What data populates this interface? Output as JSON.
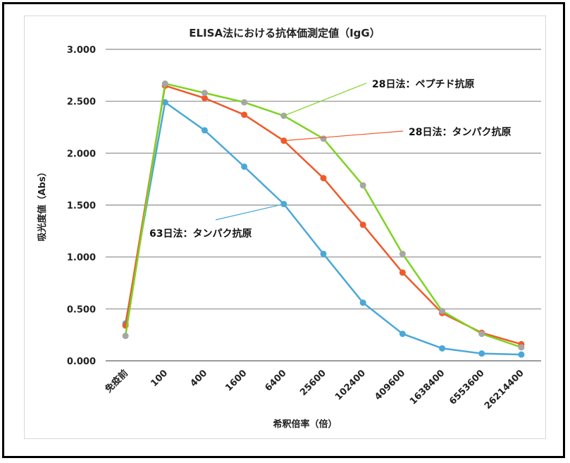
{
  "chart_data": {
    "type": "line",
    "title": "ELISA法における抗体価測定値（IgG）",
    "xlabel": "希釈倍率（倍）",
    "ylabel": "吸光度値（Abs）",
    "ylim": [
      0,
      3
    ],
    "yticks": [
      "0.000",
      "0.500",
      "1.000",
      "1.500",
      "2.000",
      "2.500",
      "3.000"
    ],
    "categories": [
      "免疫前",
      "100",
      "400",
      "1600",
      "6400",
      "25600",
      "102400",
      "409600",
      "1638400",
      "6553600",
      "26214400"
    ],
    "grid": "horizontal",
    "series": [
      {
        "name": "63日法：タンパク抗原",
        "color": "#4aa8d8",
        "values": [
          0.36,
          2.49,
          2.22,
          1.87,
          1.51,
          1.03,
          0.56,
          0.26,
          0.12,
          0.07,
          0.06
        ]
      },
      {
        "name": "28日法：タンパク抗原",
        "color": "#ee5a2a",
        "values": [
          0.34,
          2.65,
          2.53,
          2.37,
          2.12,
          1.76,
          1.31,
          0.85,
          0.46,
          0.27,
          0.16
        ]
      },
      {
        "name": "28日法：ペプチド抗原",
        "color": "#7ed321",
        "marker_color": "#a6a6a6",
        "values": [
          0.24,
          2.67,
          2.58,
          2.49,
          2.36,
          2.14,
          1.69,
          1.03,
          0.48,
          0.26,
          0.13
        ]
      }
    ],
    "annotations": [
      {
        "text": "28日法：ペプチド抗原",
        "series": 2,
        "point": 4
      },
      {
        "text": "28日法：タンパク抗原",
        "series": 1,
        "point": 4
      },
      {
        "text": "63日法：タンパク抗原",
        "series": 0,
        "point": 4
      }
    ]
  }
}
